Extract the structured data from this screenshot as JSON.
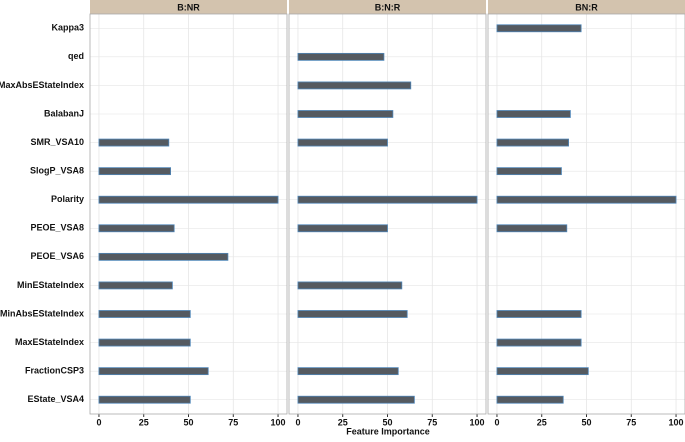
{
  "chart_data": {
    "type": "bar",
    "xlabel": "Feature Importance",
    "categories": [
      "Kappa3",
      "qed",
      "MaxAbsEStateIndex",
      "BalabanJ",
      "SMR_VSA10",
      "SlogP_VSA8",
      "Polarity",
      "PEOE_VSA8",
      "PEOE_VSA6",
      "MinEStateIndex",
      "MinAbsEStateIndex",
      "MaxEStateIndex",
      "FractionCSP3",
      "EState_VSA4"
    ],
    "facets": [
      {
        "title": "B:NR",
        "values": [
          null,
          null,
          null,
          null,
          39,
          40,
          100,
          42,
          72,
          41,
          51,
          51,
          61,
          51
        ]
      },
      {
        "title": "B:N:R",
        "values": [
          null,
          48,
          63,
          53,
          50,
          null,
          100,
          50,
          null,
          58,
          61,
          null,
          56,
          65
        ]
      },
      {
        "title": "BN:R",
        "values": [
          47,
          null,
          null,
          41,
          40,
          36,
          100,
          39,
          null,
          null,
          47,
          47,
          51,
          37
        ]
      }
    ],
    "xlim": [
      -5,
      105
    ],
    "xticks": [
      0,
      25,
      50,
      75,
      100
    ],
    "color": "#555a60",
    "edge_color": "#4f86b8",
    "grid": true
  }
}
